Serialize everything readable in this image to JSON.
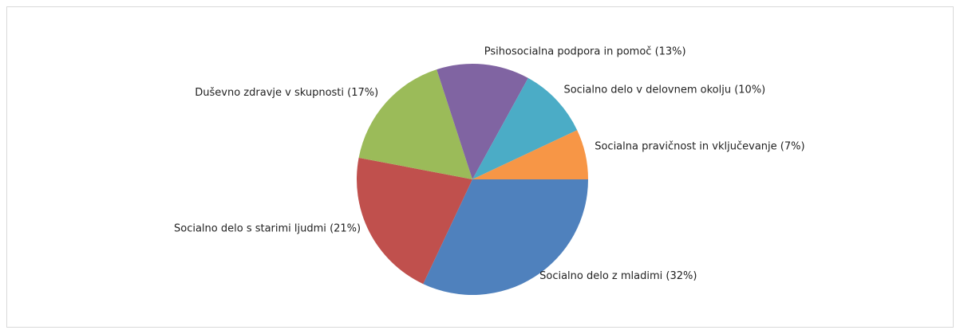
{
  "chart_data": {
    "type": "pie",
    "categories": [
      "Socialno delo z mladimi",
      "Socialno delo s starimi ljudmi",
      "Duševno zdravje v skupnosti",
      "Psihosocialna podpora in pomoč",
      "Socialno delo v delovnem okolju",
      "Socialna pravičnost in vključevanje"
    ],
    "values": [
      32,
      21,
      17,
      13,
      10,
      7
    ],
    "value_labels": [
      "(32%)",
      "(21%)",
      "(17%)",
      "(13%)",
      "(10%)",
      "(7%)"
    ],
    "colors": [
      "#4f81bd",
      "#c0504d",
      "#9bbb59",
      "#8064a2",
      "#4bacc6",
      "#f79646"
    ]
  }
}
